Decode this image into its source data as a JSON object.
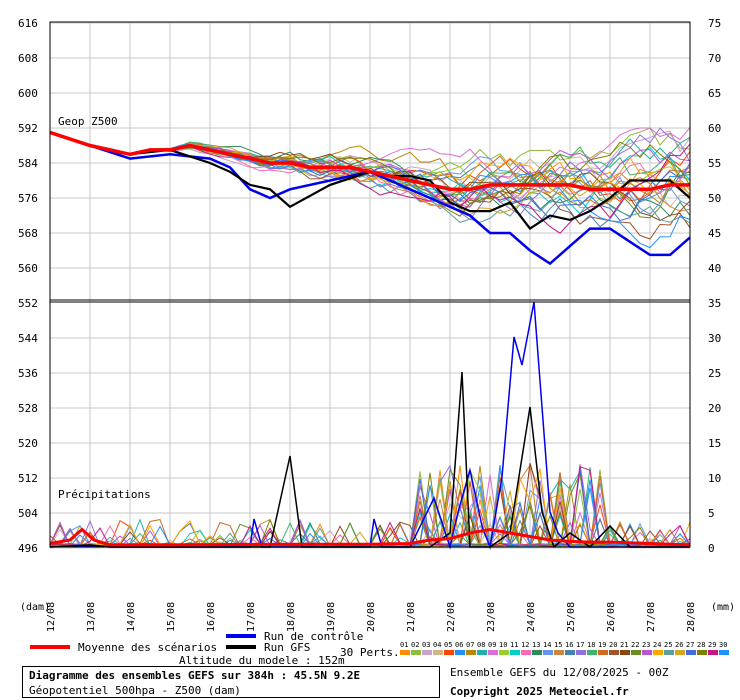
{
  "chart_data": {
    "type": "line",
    "title": "Diagramme des ensembles GEFS sur 384h : 45.5N 9.2E",
    "subtitle": "Géopotentiel 500hpa - Z500 (dam)",
    "panel_labels": {
      "geop": "Geop Z500",
      "precip": "Précipitations"
    },
    "left_axis": {
      "ticks": [
        616,
        608,
        600,
        592,
        584,
        576,
        568,
        560,
        552,
        544,
        536,
        528,
        520,
        512,
        504,
        496
      ],
      "unit": "(dam)"
    },
    "right_axis": {
      "ticks": [
        75,
        70,
        65,
        60,
        55,
        50,
        45,
        40,
        35,
        30,
        25,
        20,
        15,
        10,
        5,
        0
      ],
      "unit": "(mm)"
    },
    "x_ticks": [
      "12/08",
      "13/08",
      "14/08",
      "15/08",
      "16/08",
      "17/08",
      "18/08",
      "19/08",
      "20/08",
      "21/08",
      "22/08",
      "23/08",
      "24/08",
      "25/08",
      "26/08",
      "27/08",
      "28/08"
    ],
    "ylim_geop": [
      552,
      620
    ],
    "ylim_precip_mm": [
      0,
      35
    ],
    "grid": true,
    "series": [
      {
        "name": "Moyenne des scénarios",
        "color": "#ff0000",
        "z500": [
          [
            0,
            591
          ],
          [
            1,
            588
          ],
          [
            2,
            586
          ],
          [
            2.5,
            587
          ],
          [
            3,
            587
          ],
          [
            3.5,
            588
          ],
          [
            4,
            587
          ],
          [
            4.5,
            586
          ],
          [
            5,
            585
          ],
          [
            5.5,
            584
          ],
          [
            6,
            584
          ],
          [
            6.5,
            583
          ],
          [
            7,
            583
          ],
          [
            7.5,
            583
          ],
          [
            8,
            582
          ],
          [
            8.5,
            581
          ],
          [
            9,
            580
          ],
          [
            9.5,
            579
          ],
          [
            10,
            578
          ],
          [
            10.5,
            578
          ],
          [
            11,
            579
          ],
          [
            11.5,
            579
          ],
          [
            12,
            579
          ],
          [
            12.5,
            579
          ],
          [
            13,
            579
          ],
          [
            13.5,
            578
          ],
          [
            14,
            578
          ],
          [
            14.5,
            578
          ],
          [
            15,
            578
          ],
          [
            15.5,
            579
          ],
          [
            16,
            579
          ]
        ],
        "precip": [
          [
            0,
            0.5
          ],
          [
            0.5,
            1
          ],
          [
            0.8,
            2.5
          ],
          [
            1.1,
            1
          ],
          [
            1.5,
            0.3
          ],
          [
            3,
            0.3
          ],
          [
            6,
            0.4
          ],
          [
            8,
            0.4
          ],
          [
            9,
            0.5
          ],
          [
            9.5,
            1
          ],
          [
            10,
            1.2
          ],
          [
            10.5,
            2
          ],
          [
            11,
            2.5
          ],
          [
            11.5,
            2
          ],
          [
            12,
            1.5
          ],
          [
            12.5,
            1
          ],
          [
            13,
            0.8
          ],
          [
            13.5,
            0.7
          ],
          [
            14,
            0.7
          ],
          [
            14.5,
            0.6
          ],
          [
            15,
            0.5
          ],
          [
            15.5,
            0.4
          ],
          [
            16,
            0.3
          ]
        ]
      },
      {
        "name": "Run de contrôle",
        "color": "#0000ee",
        "z500": [
          [
            0,
            591
          ],
          [
            1,
            588
          ],
          [
            2,
            585
          ],
          [
            3,
            586
          ],
          [
            4,
            585
          ],
          [
            4.5,
            583
          ],
          [
            5,
            578
          ],
          [
            5.5,
            576
          ],
          [
            6,
            578
          ],
          [
            7,
            580
          ],
          [
            8,
            582
          ],
          [
            8.5,
            580
          ],
          [
            9,
            578
          ],
          [
            9.5,
            576
          ],
          [
            10,
            574
          ],
          [
            10.5,
            572
          ],
          [
            11,
            568
          ],
          [
            11.5,
            568
          ],
          [
            12,
            564
          ],
          [
            12.5,
            561
          ],
          [
            13,
            565
          ],
          [
            13.5,
            569
          ],
          [
            14,
            569
          ],
          [
            14.5,
            566
          ],
          [
            15,
            563
          ],
          [
            15.5,
            563
          ],
          [
            16,
            567
          ]
        ],
        "precip": [
          [
            0,
            0
          ],
          [
            1,
            0.2
          ],
          [
            1.5,
            0
          ],
          [
            5,
            0
          ],
          [
            5.1,
            4
          ],
          [
            5.3,
            0
          ],
          [
            8,
            0
          ],
          [
            8.1,
            4
          ],
          [
            8.3,
            0
          ],
          [
            9,
            0
          ],
          [
            9.6,
            7
          ],
          [
            10,
            0
          ],
          [
            10.2,
            5
          ],
          [
            10.5,
            11
          ],
          [
            10.8,
            3
          ],
          [
            11,
            0
          ],
          [
            11.3,
            10
          ],
          [
            11.6,
            30
          ],
          [
            11.8,
            26
          ],
          [
            12.1,
            35
          ],
          [
            12.3,
            20
          ],
          [
            12.5,
            5
          ],
          [
            12.7,
            2
          ],
          [
            13,
            0
          ],
          [
            16,
            0
          ]
        ]
      },
      {
        "name": "Run GFS",
        "color": "#000000",
        "z500": [
          [
            0,
            591
          ],
          [
            1,
            588
          ],
          [
            2,
            586
          ],
          [
            3,
            587
          ],
          [
            4,
            584
          ],
          [
            4.5,
            582
          ],
          [
            5,
            579
          ],
          [
            5.5,
            578
          ],
          [
            6,
            574
          ],
          [
            7,
            579
          ],
          [
            8,
            582
          ],
          [
            8.5,
            581
          ],
          [
            9,
            581
          ],
          [
            9.5,
            580
          ],
          [
            10,
            575
          ],
          [
            10.5,
            573
          ],
          [
            11,
            573
          ],
          [
            11.5,
            575
          ],
          [
            12,
            569
          ],
          [
            12.5,
            572
          ],
          [
            13,
            571
          ],
          [
            13.5,
            573
          ],
          [
            14,
            576
          ],
          [
            14.5,
            580
          ],
          [
            15,
            580
          ],
          [
            15.5,
            580
          ],
          [
            16,
            576
          ]
        ],
        "precip": [
          [
            0,
            0
          ],
          [
            1,
            0.3
          ],
          [
            1.5,
            0
          ],
          [
            5.5,
            0
          ],
          [
            6,
            13
          ],
          [
            6.3,
            0
          ],
          [
            8,
            0
          ],
          [
            9.5,
            0
          ],
          [
            10,
            2
          ],
          [
            10.3,
            25
          ],
          [
            10.5,
            0
          ],
          [
            11,
            0
          ],
          [
            11.5,
            2
          ],
          [
            12,
            20
          ],
          [
            12.3,
            5
          ],
          [
            12.6,
            0
          ],
          [
            13,
            2
          ],
          [
            13.5,
            0
          ],
          [
            14,
            3
          ],
          [
            14.5,
            0
          ],
          [
            16,
            0
          ]
        ]
      }
    ],
    "perturbations_label": "30 Perts.",
    "perturbations": [
      "01",
      "02",
      "03",
      "04",
      "05",
      "06",
      "07",
      "08",
      "09",
      "10",
      "11",
      "12",
      "13",
      "14",
      "15",
      "16",
      "17",
      "18",
      "19",
      "20",
      "21",
      "22",
      "23",
      "24",
      "25",
      "26",
      "27",
      "28",
      "29",
      "30"
    ],
    "perturbation_colors": [
      "#ff8c00",
      "#8fbc3f",
      "#c8a2c8",
      "#d2b48c",
      "#ff4500",
      "#1e90ff",
      "#b8860b",
      "#20b2aa",
      "#da70d6",
      "#9acd32",
      "#00ced1",
      "#ff69b4",
      "#2e8b57",
      "#6495ed",
      "#cd853f",
      "#4682b4",
      "#9370db",
      "#3cb371",
      "#d2691e",
      "#a0522d",
      "#8b4513",
      "#6b8e23",
      "#ba55d3",
      "#ffa500",
      "#5f9ea0",
      "#daa520",
      "#4169e1",
      "#808000",
      "#c71585",
      "#1e90ff"
    ],
    "model_altitude": "Altitude du modele : 152m",
    "ensemble_info": "Ensemble GEFS du 12/08/2025 - 00Z",
    "copyright": "Copyright 2025 Meteociel.fr"
  }
}
